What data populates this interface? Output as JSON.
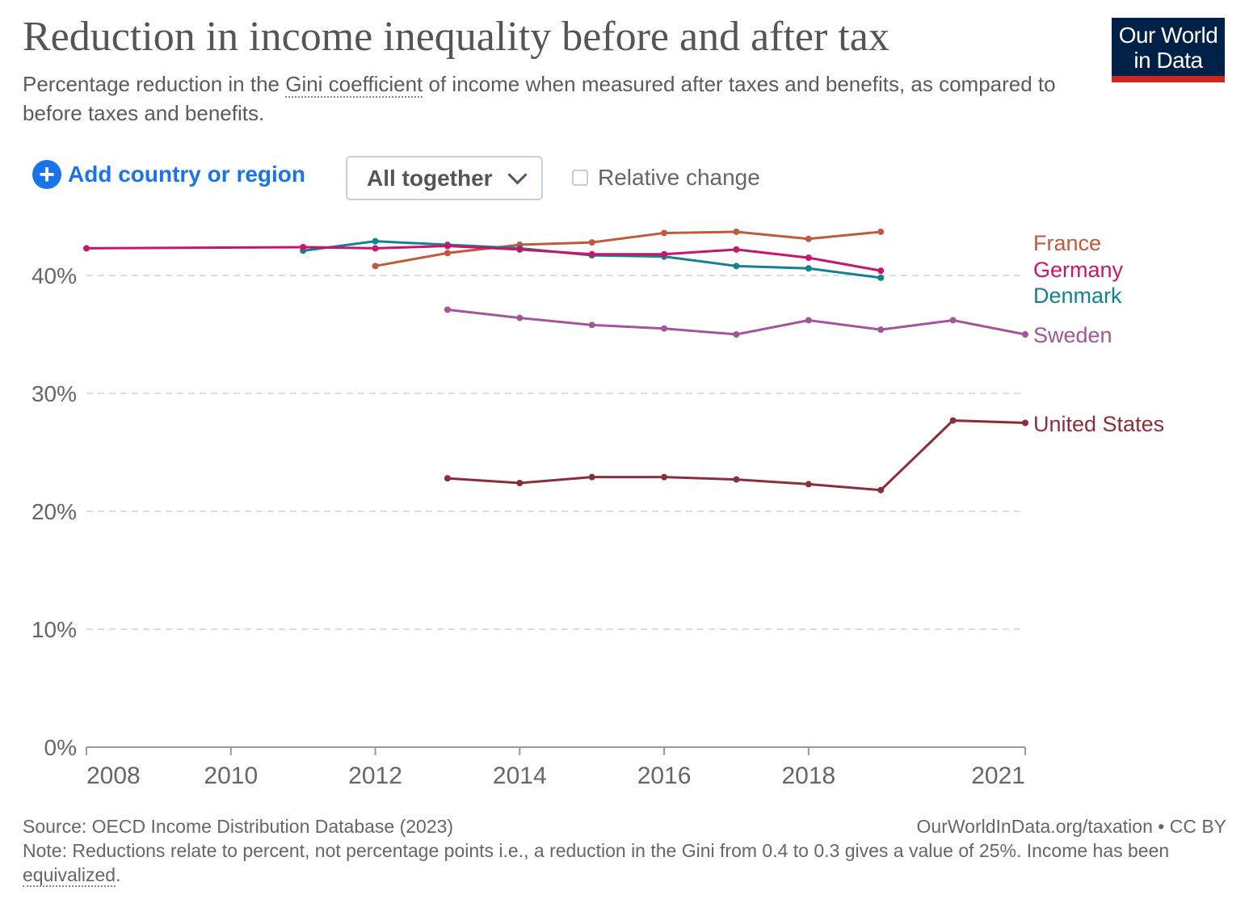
{
  "header": {
    "title": "Reduction in income inequality before and after tax",
    "subtitle_pre": "Percentage reduction in the ",
    "subtitle_link": "Gini coefficient",
    "subtitle_post": " of income when measured after taxes and benefits, as compared to before taxes and benefits.",
    "logo": {
      "line1": "Our World",
      "line2": "in Data",
      "bg": "#002147",
      "bar": "#ce261e"
    }
  },
  "controls": {
    "add_label": "Add country or region",
    "add_icon": "plus-circle-icon",
    "dropdown_value": "All together",
    "relative_label": "Relative change",
    "relative_checked": false
  },
  "chart_data": {
    "type": "line",
    "title": "Reduction in income inequality before and after tax",
    "xlim": [
      2008,
      2021
    ],
    "ylim": [
      0,
      45
    ],
    "x_ticks": [
      2008,
      2010,
      2012,
      2014,
      2016,
      2018,
      2021
    ],
    "x_tick_labels": [
      "2008",
      "2010",
      "2012",
      "2014",
      "2016",
      "2018",
      "2021"
    ],
    "y_ticks": [
      0,
      10,
      20,
      30,
      40
    ],
    "y_tick_labels": [
      "0%",
      "10%",
      "20%",
      "30%",
      "40%"
    ],
    "grid": "horizontal dashed",
    "legend": "line-end labels right",
    "series": [
      {
        "name": "France",
        "color": "#c15a3c",
        "x": [
          2012,
          2013,
          2014,
          2015,
          2016,
          2017,
          2018,
          2019
        ],
        "y": [
          40.8,
          41.9,
          42.6,
          42.8,
          43.6,
          43.7,
          43.1,
          43.7
        ]
      },
      {
        "name": "Denmark",
        "color": "#138290",
        "x": [
          2011,
          2012,
          2013,
          2014,
          2015,
          2016,
          2017,
          2018,
          2019
        ],
        "y": [
          42.1,
          42.9,
          42.6,
          42.3,
          41.7,
          41.6,
          40.8,
          40.6,
          39.8
        ]
      },
      {
        "name": "Germany",
        "color": "#c8146a",
        "x": [
          2008,
          2011,
          2012,
          2013,
          2014,
          2015,
          2016,
          2017,
          2018,
          2019
        ],
        "y": [
          42.3,
          42.4,
          42.3,
          42.5,
          42.2,
          41.8,
          41.8,
          42.2,
          41.5,
          40.4
        ]
      },
      {
        "name": "Sweden",
        "color": "#a2559c",
        "x": [
          2013,
          2014,
          2015,
          2016,
          2017,
          2018,
          2019,
          2020,
          2021
        ],
        "y": [
          37.1,
          36.4,
          35.8,
          35.5,
          35.0,
          36.2,
          35.4,
          36.2,
          35.0
        ]
      },
      {
        "name": "United States",
        "color": "#883039",
        "x": [
          2013,
          2014,
          2015,
          2016,
          2017,
          2018,
          2019,
          2020,
          2021
        ],
        "y": [
          22.8,
          22.4,
          22.9,
          22.9,
          22.7,
          22.3,
          21.8,
          27.7,
          27.5
        ]
      }
    ]
  },
  "footer": {
    "source": "Source: OECD Income Distribution Database (2023)",
    "credit": "OurWorldInData.org/taxation • CC BY",
    "note_pre": "Note: Reductions relate to percent, not percentage points i.e., a reduction in the Gini from 0.4 to 0.3 gives a value of 25%. Income has been ",
    "note_link": "equivalized",
    "note_post": "."
  }
}
